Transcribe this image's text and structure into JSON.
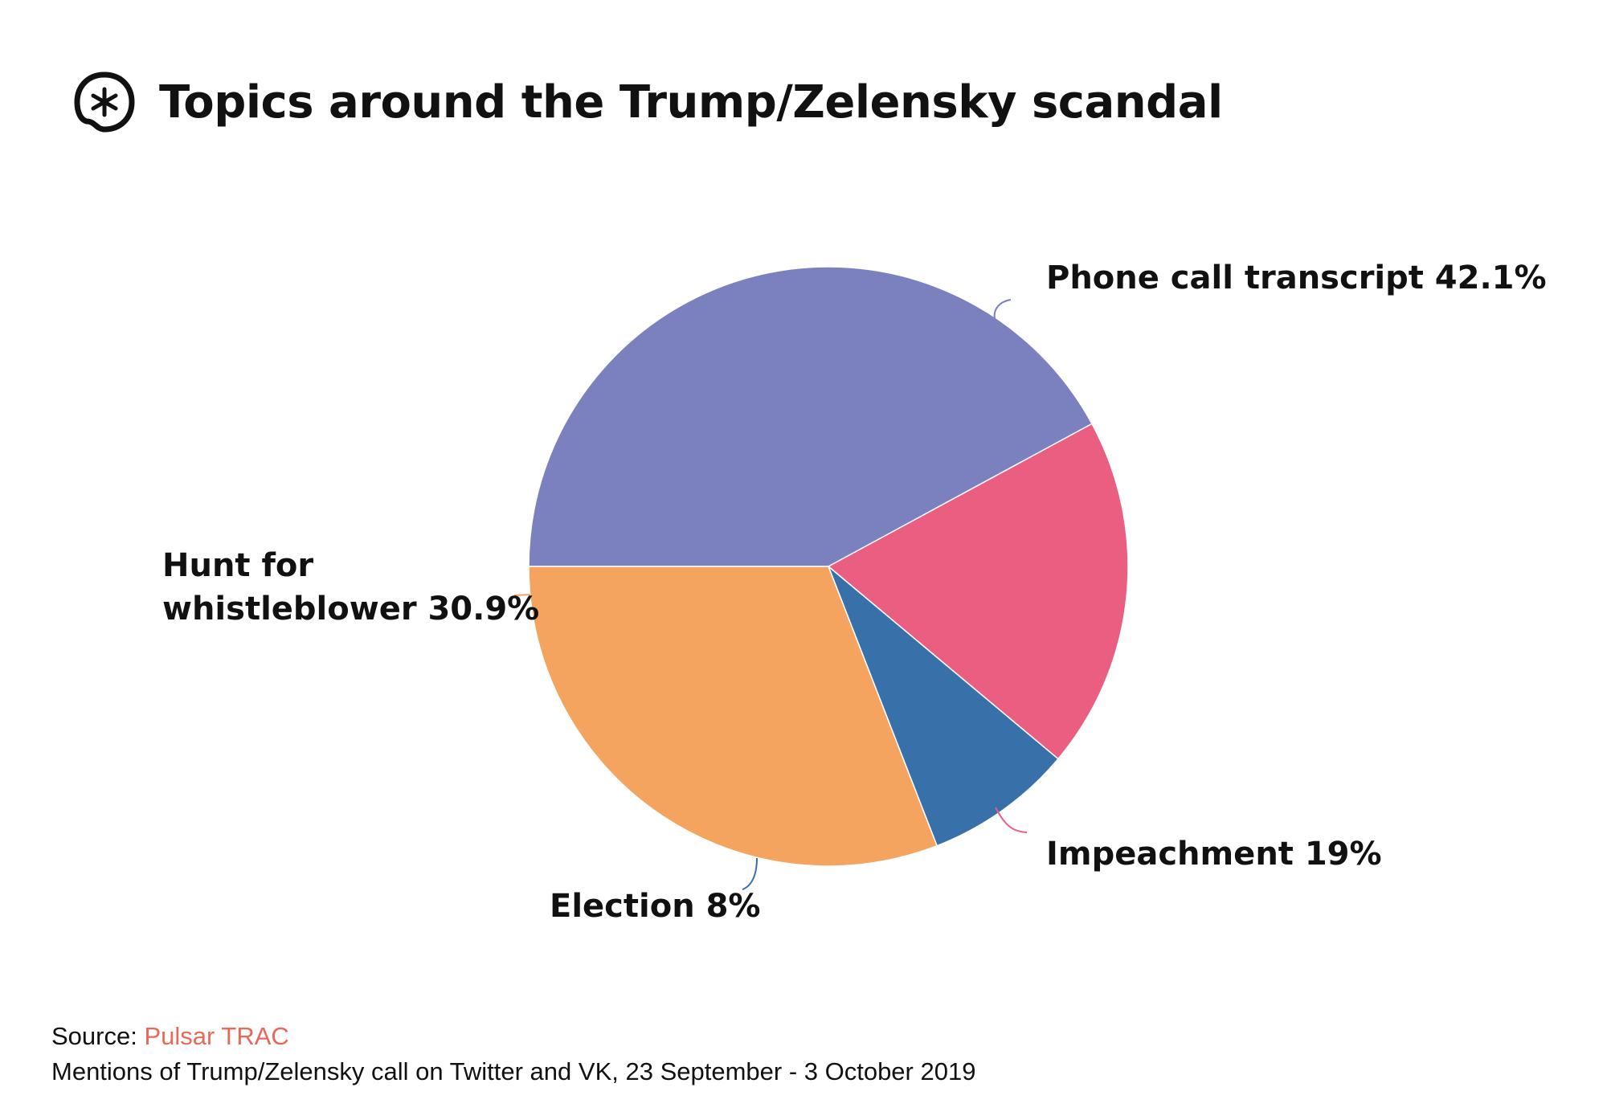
{
  "title": "Topics around the Trump/Zelensky scandal",
  "logo_icon": "asterisk-circle-icon",
  "footer": {
    "source_prefix": "Source:",
    "source_name": "Pulsar TRAC",
    "source_color": "#e8685a",
    "note": "Mentions of Trump/Zelensky call on Twitter and VK, 23 September - 3  October 2019"
  },
  "chart_data": {
    "type": "pie",
    "start_angle_deg": 180,
    "direction": "clockwise",
    "slices": [
      {
        "label": "Phone call transcript 42.1%",
        "value": 42.1,
        "color": "#7b80be"
      },
      {
        "label": "Impeachment 19%",
        "value": 19,
        "color": "#ea5f81"
      },
      {
        "label": "Election 8%",
        "value": 8,
        "color": "#3870aa"
      },
      {
        "label": "Hunt for whistleblower 30.9%",
        "value": 30.9,
        "color": "#f4a45f"
      }
    ]
  }
}
